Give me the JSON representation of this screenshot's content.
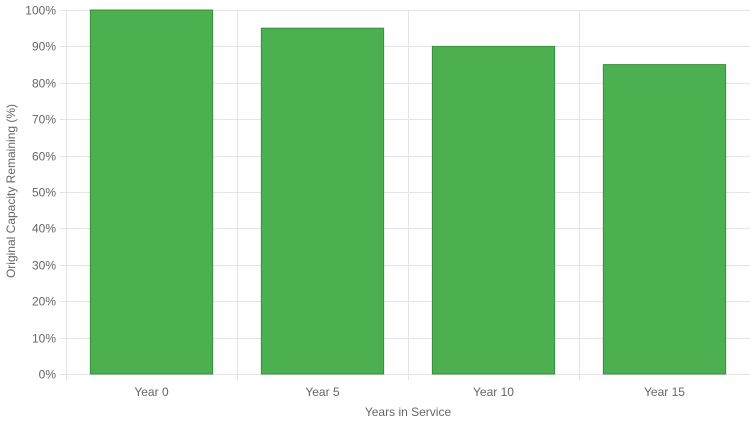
{
  "chart_data": {
    "type": "bar",
    "categories": [
      "Year 0",
      "Year 5",
      "Year 10",
      "Year 15"
    ],
    "values": [
      100,
      95,
      90,
      85
    ],
    "title": "",
    "xlabel": "Years in Service",
    "ylabel": "Original Capacity Remaining (%)",
    "ylim": [
      0,
      100
    ],
    "y_ticks": [
      0,
      10,
      20,
      30,
      40,
      50,
      60,
      70,
      80,
      90,
      100
    ],
    "y_tick_labels": [
      "0%",
      "10%",
      "20%",
      "30%",
      "40%",
      "50%",
      "60%",
      "70%",
      "80%",
      "90%",
      "100%"
    ],
    "grid": true,
    "legend": "none",
    "colors": {
      "bar_fill": "#4caf50",
      "bar_border": "#388e3c",
      "grid": "#e5e5e5",
      "text": "#666666"
    }
  }
}
